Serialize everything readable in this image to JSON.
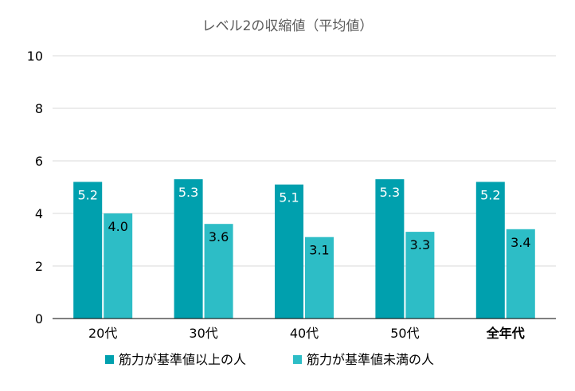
{
  "chart_data": {
    "type": "bar",
    "title": "レベル2の収縮値（平均値）",
    "categories": [
      "20代",
      "30代",
      "40代",
      "50代",
      "全年代"
    ],
    "series": [
      {
        "name": "筋力が基準値以上の人",
        "values": [
          5.2,
          5.3,
          5.1,
          5.3,
          5.2
        ],
        "color": "#00A0AE"
      },
      {
        "name": "筋力が基準値未満の人",
        "values": [
          4.0,
          3.6,
          3.1,
          3.3,
          3.4
        ],
        "color": "#2DBDC6"
      }
    ],
    "data_labels": [
      [
        "5.2",
        "5.3",
        "5.1",
        "5.3",
        "5.2"
      ],
      [
        "4.0",
        "3.6",
        "3.1",
        "3.3",
        "3.4"
      ]
    ],
    "y_ticks": [
      "0",
      "2",
      "4",
      "6",
      "8",
      "10"
    ],
    "ylim": [
      0,
      10
    ],
    "grid": true,
    "legend_position": "bottom",
    "label_colors": {
      "series1": "#ffffff",
      "series2": "#000000"
    },
    "gridline_color": "#d9d9d9",
    "axis_color": "#000000"
  }
}
